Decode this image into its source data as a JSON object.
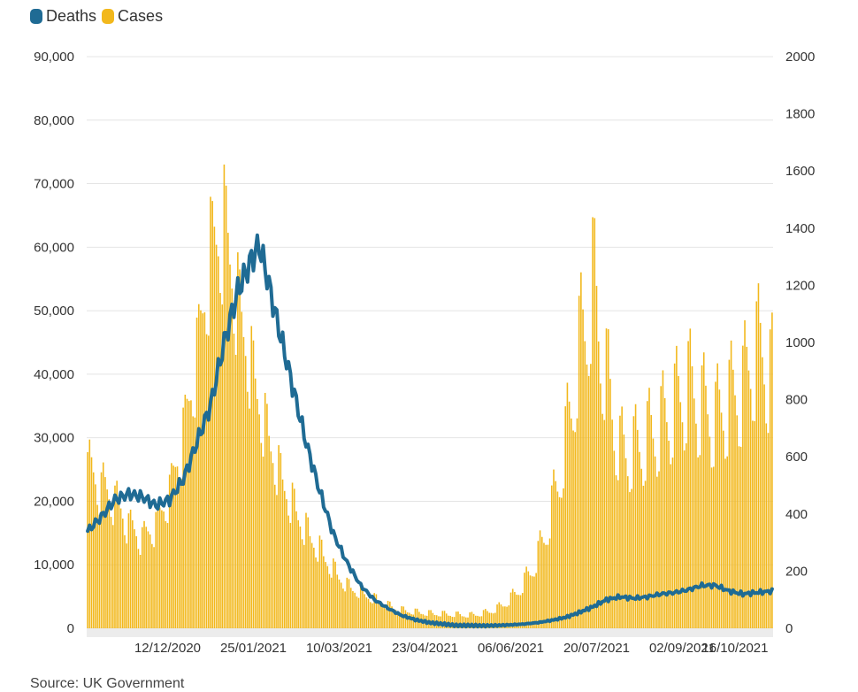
{
  "legend": {
    "deaths_label": "Deaths",
    "cases_label": "Cases",
    "deaths_color": "#1f6b94",
    "cases_color": "#f2b81c"
  },
  "source": "Source: UK Government",
  "chart_data": {
    "type": "bar+line",
    "title": "",
    "left_axis": {
      "min": 0,
      "max": 90000,
      "ticks": [
        "0",
        "10,000",
        "20,000",
        "30,000",
        "40,000",
        "50,000",
        "60,000",
        "70,000",
        "80,000",
        "90,000"
      ],
      "series": "Cases"
    },
    "right_axis": {
      "min": 0,
      "max": 2000,
      "ticks": [
        "0",
        "200",
        "400",
        "600",
        "800",
        "1000",
        "1200",
        "1400",
        "1600",
        "1800",
        "2000"
      ],
      "series": "Deaths"
    },
    "x_tick_labels": [
      "12/12/2020",
      "25/01/2021",
      "10/03/2021",
      "23/04/2021",
      "06/06/2021",
      "20/07/2021",
      "02/09/2021",
      "16/10/2021"
    ],
    "start_date": "2020-11-01",
    "days": 352,
    "grid": true,
    "cases_keypoints": [
      [
        0,
        25000
      ],
      [
        7,
        22000
      ],
      [
        14,
        20000
      ],
      [
        21,
        16000
      ],
      [
        28,
        14000
      ],
      [
        35,
        16000
      ],
      [
        42,
        21000
      ],
      [
        49,
        30000
      ],
      [
        56,
        42000
      ],
      [
        63,
        58000
      ],
      [
        70,
        62000
      ],
      [
        77,
        50000
      ],
      [
        84,
        40000
      ],
      [
        91,
        31000
      ],
      [
        98,
        24000
      ],
      [
        105,
        19000
      ],
      [
        112,
        15000
      ],
      [
        119,
        12000
      ],
      [
        126,
        9000
      ],
      [
        133,
        6500
      ],
      [
        140,
        5500
      ],
      [
        147,
        4500
      ],
      [
        154,
        3500
      ],
      [
        161,
        2800
      ],
      [
        168,
        2500
      ],
      [
        175,
        2300
      ],
      [
        182,
        2200
      ],
      [
        189,
        2100
      ],
      [
        196,
        2000
      ],
      [
        203,
        2300
      ],
      [
        210,
        3000
      ],
      [
        217,
        4500
      ],
      [
        224,
        7000
      ],
      [
        231,
        11000
      ],
      [
        238,
        18000
      ],
      [
        245,
        28000
      ],
      [
        252,
        42000
      ],
      [
        259,
        52000
      ],
      [
        266,
        38000
      ],
      [
        273,
        27000
      ],
      [
        280,
        27000
      ],
      [
        287,
        29000
      ],
      [
        294,
        31000
      ],
      [
        301,
        34000
      ],
      [
        308,
        37000
      ],
      [
        315,
        34000
      ],
      [
        322,
        32000
      ],
      [
        329,
        35000
      ],
      [
        336,
        37000
      ],
      [
        343,
        43000
      ],
      [
        351,
        39000
      ]
    ],
    "deaths_keypoints": [
      [
        0,
        340
      ],
      [
        7,
        390
      ],
      [
        14,
        450
      ],
      [
        21,
        470
      ],
      [
        28,
        460
      ],
      [
        35,
        430
      ],
      [
        42,
        450
      ],
      [
        49,
        520
      ],
      [
        56,
        650
      ],
      [
        63,
        780
      ],
      [
        70,
        1000
      ],
      [
        77,
        1180
      ],
      [
        84,
        1290
      ],
      [
        88,
        1340
      ],
      [
        91,
        1260
      ],
      [
        98,
        1050
      ],
      [
        105,
        850
      ],
      [
        112,
        650
      ],
      [
        119,
        480
      ],
      [
        126,
        330
      ],
      [
        133,
        230
      ],
      [
        140,
        150
      ],
      [
        147,
        100
      ],
      [
        154,
        70
      ],
      [
        161,
        45
      ],
      [
        168,
        30
      ],
      [
        175,
        20
      ],
      [
        182,
        15
      ],
      [
        189,
        10
      ],
      [
        196,
        10
      ],
      [
        203,
        9
      ],
      [
        210,
        10
      ],
      [
        217,
        12
      ],
      [
        224,
        15
      ],
      [
        231,
        20
      ],
      [
        238,
        28
      ],
      [
        245,
        38
      ],
      [
        252,
        55
      ],
      [
        259,
        75
      ],
      [
        266,
        100
      ],
      [
        273,
        110
      ],
      [
        280,
        105
      ],
      [
        287,
        110
      ],
      [
        294,
        120
      ],
      [
        301,
        125
      ],
      [
        308,
        135
      ],
      [
        315,
        150
      ],
      [
        322,
        150
      ],
      [
        329,
        130
      ],
      [
        336,
        120
      ],
      [
        343,
        125
      ],
      [
        351,
        130
      ]
    ]
  }
}
